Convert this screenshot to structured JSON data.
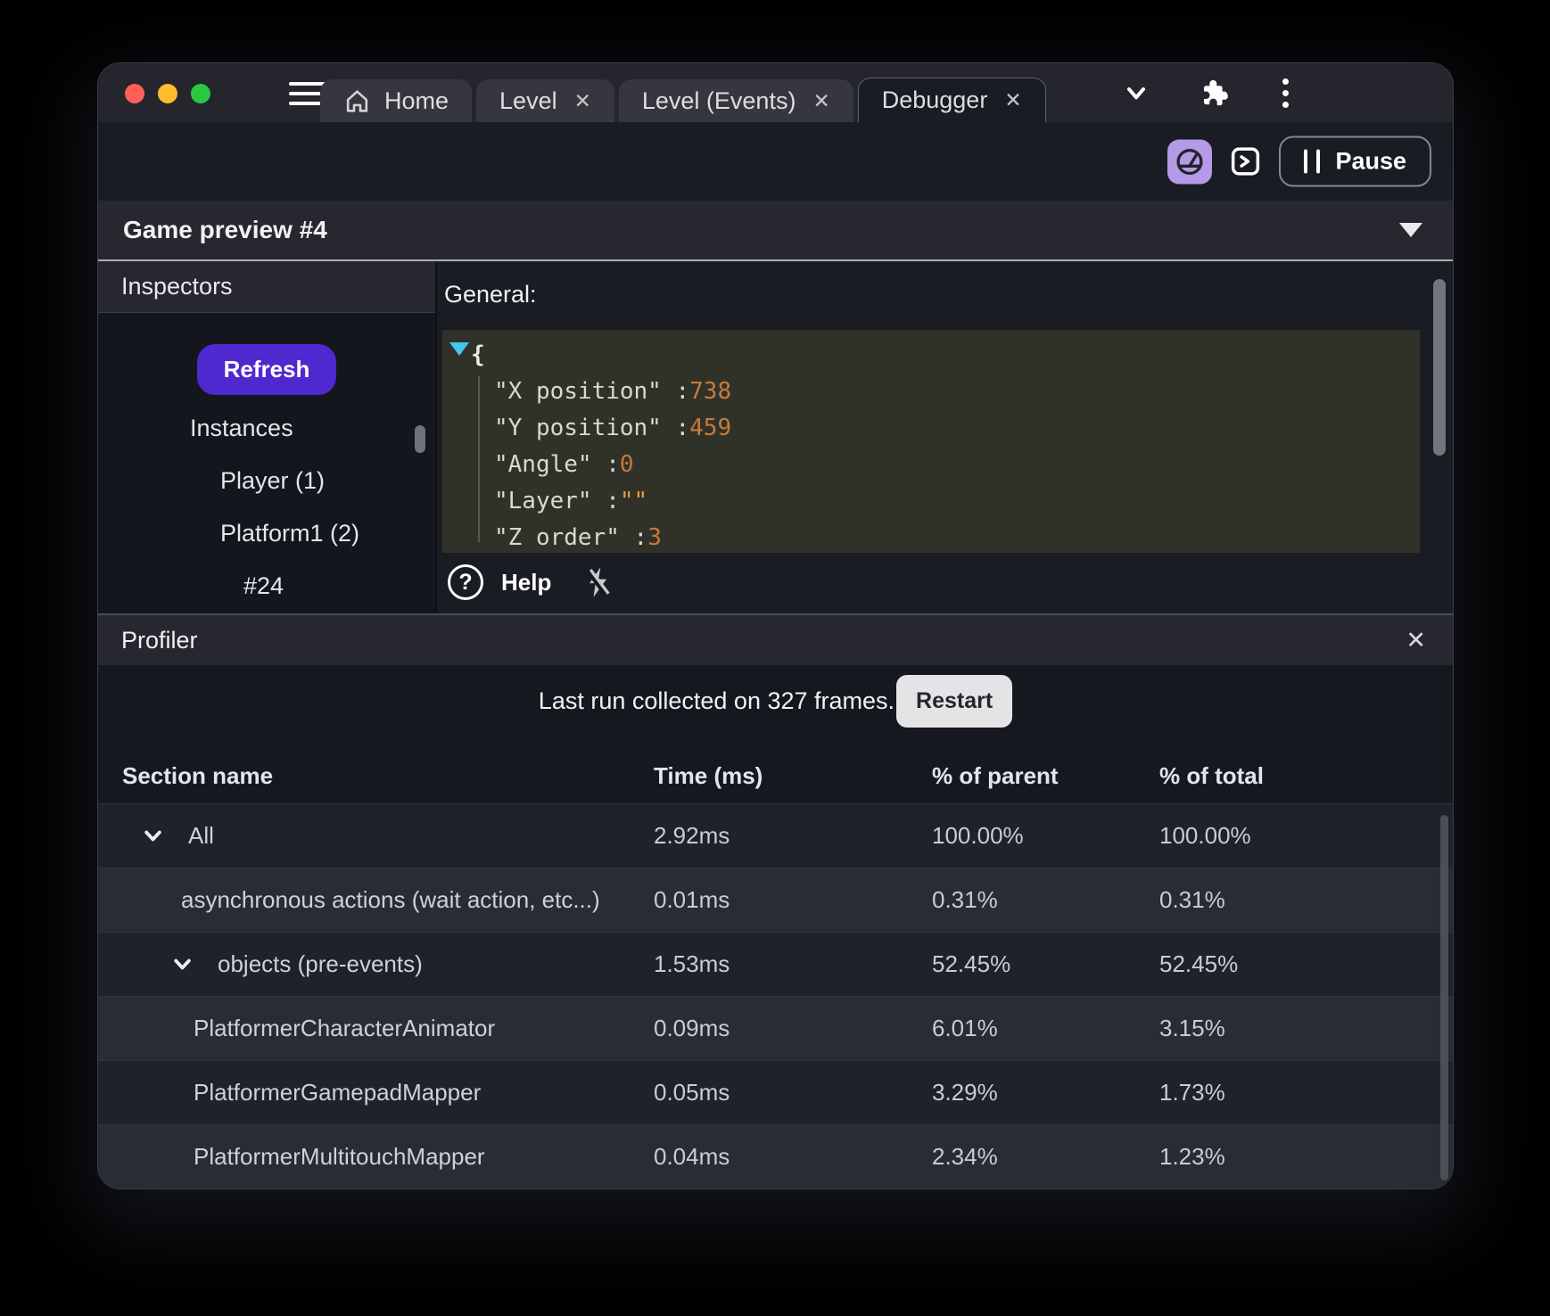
{
  "titlebar": {
    "traffic_lights": [
      "#ff5f58",
      "#febc2e",
      "#28c841"
    ],
    "tabs": [
      {
        "label": "Home",
        "icon": "home",
        "closable": false,
        "active": false
      },
      {
        "label": "Level",
        "closable": true,
        "active": false
      },
      {
        "label": "Level (Events)",
        "closable": true,
        "active": false
      },
      {
        "label": "Debugger",
        "closable": true,
        "active": true
      }
    ],
    "right_icons": [
      "chevron-down",
      "puzzle",
      "kebab-menu"
    ]
  },
  "toolbar": {
    "profiler_toggle_active_color": "#b49ae8",
    "pause_label": "Pause"
  },
  "preview": {
    "title": "Game preview #4"
  },
  "inspectors": {
    "title": "Inspectors",
    "refresh_label": "Refresh",
    "items": [
      {
        "label": "Instances",
        "depth": 0
      },
      {
        "label": "Player (1)",
        "depth": 1
      },
      {
        "label": "Platform1 (2)",
        "depth": 1
      },
      {
        "label": "#24",
        "depth": 2
      }
    ]
  },
  "general": {
    "title": "General:",
    "help_label": "Help",
    "json": {
      "open_brace": "{",
      "fields": [
        {
          "key": "X position",
          "value": "738",
          "type": "number"
        },
        {
          "key": "Y position",
          "value": "459",
          "type": "number"
        },
        {
          "key": "Angle",
          "value": "0",
          "type": "number"
        },
        {
          "key": "Layer",
          "value": "\"\"",
          "type": "string"
        },
        {
          "key": "Z order",
          "value": "3",
          "type": "number"
        }
      ]
    }
  },
  "profiler": {
    "title": "Profiler",
    "status_text": "Last run collected on 327 frames.",
    "restart_label": "Restart",
    "columns": [
      "Section name",
      "Time (ms)",
      "% of parent",
      "% of total"
    ],
    "rows": [
      {
        "name": "All",
        "time": "2.92ms",
        "percent_parent": "100.00%",
        "percent_total": "100.00%",
        "depth": 0,
        "expandable": true
      },
      {
        "name": "asynchronous actions (wait action, etc...)",
        "time": "0.01ms",
        "percent_parent": "0.31%",
        "percent_total": "0.31%",
        "depth": 1,
        "expandable": false
      },
      {
        "name": "objects (pre-events)",
        "time": "1.53ms",
        "percent_parent": "52.45%",
        "percent_total": "52.45%",
        "depth": 1,
        "expandable": true
      },
      {
        "name": "PlatformerCharacterAnimator",
        "time": "0.09ms",
        "percent_parent": "6.01%",
        "percent_total": "3.15%",
        "depth": 2,
        "expandable": false
      },
      {
        "name": "PlatformerGamepadMapper",
        "time": "0.05ms",
        "percent_parent": "3.29%",
        "percent_total": "1.73%",
        "depth": 2,
        "expandable": false
      },
      {
        "name": "PlatformerMultitouchMapper",
        "time": "0.04ms",
        "percent_parent": "2.34%",
        "percent_total": "1.23%",
        "depth": 2,
        "expandable": false
      }
    ]
  },
  "colors": {
    "accent_purple": "#4f28cf",
    "number_orange": "#c8793a",
    "string_yellow": "#e0a42e",
    "expander_cyan": "#41c8f0"
  }
}
